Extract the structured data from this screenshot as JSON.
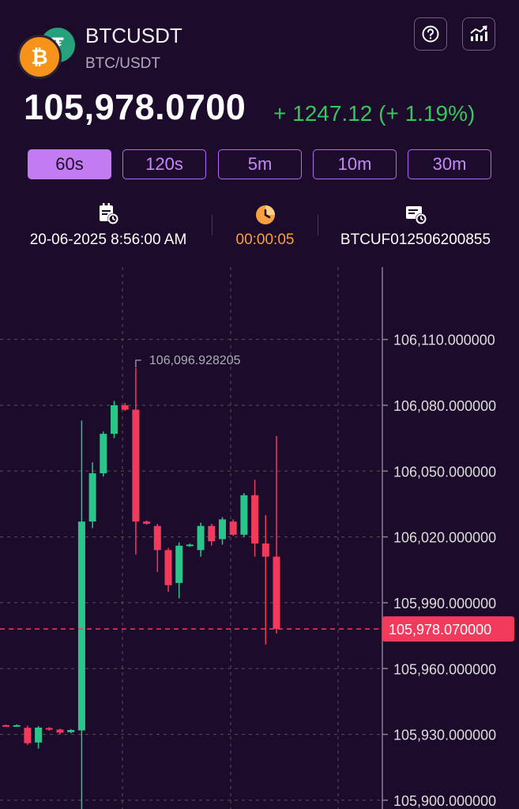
{
  "header": {
    "title": "BTCUSDT",
    "subtitle": "BTC/USDT",
    "coin_back_icon": "tether-logo-icon",
    "coin_front_icon": "bitcoin-logo-icon",
    "help_icon": "help-icon",
    "chart_icon": "trend-chart-icon"
  },
  "price": {
    "current": "105,978.0700",
    "change": "+ 1247.12 (+ 1.19%)",
    "change_color": "#35c759"
  },
  "tabs": [
    {
      "label": "60s",
      "active": true
    },
    {
      "label": "120s",
      "active": false
    },
    {
      "label": "5m",
      "active": false
    },
    {
      "label": "10m",
      "active": false
    },
    {
      "label": "30m",
      "active": false
    }
  ],
  "info": {
    "datetime": "20-06-2025 8:56:00 AM",
    "countdown": "00:00:05",
    "order_id": "BTCUF012506200855"
  },
  "chart_data": {
    "type": "candlestick",
    "y_ticks": [
      "106,110.000000",
      "106,080.000000",
      "106,050.000000",
      "106,020.000000",
      "105,990.000000",
      "105,960.000000",
      "105,930.000000",
      "105,900.000000"
    ],
    "y_values": [
      106110,
      106080,
      106050,
      106020,
      105990,
      105960,
      105930,
      105900
    ],
    "ylim": [
      105896,
      106143
    ],
    "current_price_label": "105,978.070000",
    "current_price": 105978.07,
    "high_label": "106,096.928205",
    "high_value": 106096.93,
    "up_color": "#2bc48a",
    "down_color": "#f23b5c",
    "candles": [
      {
        "o": 105934.2,
        "c": 105934.0,
        "h": 105934.5,
        "l": 105933.7
      },
      {
        "o": 105934.1,
        "c": 105934.2,
        "h": 105934.6,
        "l": 105933.8
      },
      {
        "o": 105933.0,
        "c": 105926.0,
        "h": 105934.0,
        "l": 105925.2
      },
      {
        "o": 105926.3,
        "c": 105933.1,
        "h": 105933.8,
        "l": 105923.5
      },
      {
        "o": 105932.9,
        "c": 105932.4,
        "h": 105933.3,
        "l": 105931.7
      },
      {
        "o": 105932.2,
        "c": 105930.8,
        "h": 105932.6,
        "l": 105930.0
      },
      {
        "o": 105931.0,
        "c": 105932.0,
        "h": 105932.4,
        "l": 105930.5
      },
      {
        "o": 105931.8,
        "c": 106027.0,
        "h": 106073.0,
        "l": 105889.0
      },
      {
        "o": 106027.0,
        "c": 106049.0,
        "h": 106054.0,
        "l": 106024.0
      },
      {
        "o": 106049.0,
        "c": 106067.0,
        "h": 106068.0,
        "l": 106047.5
      },
      {
        "o": 106067.0,
        "c": 106080.0,
        "h": 106082.0,
        "l": 106065.0
      },
      {
        "o": 106080.0,
        "c": 106078.0,
        "h": 106081.0,
        "l": 106077.5
      },
      {
        "o": 106078.0,
        "c": 106027.0,
        "h": 106096.9,
        "l": 106012.0
      },
      {
        "o": 106027.0,
        "c": 106026.0,
        "h": 106027.5,
        "l": 106025.5
      },
      {
        "o": 106025.0,
        "c": 106014.0,
        "h": 106026.0,
        "l": 106004.0
      },
      {
        "o": 106014.0,
        "c": 105998.0,
        "h": 106015.0,
        "l": 105995.0
      },
      {
        "o": 105999.0,
        "c": 106016.0,
        "h": 106017.5,
        "l": 105992.0
      },
      {
        "o": 106016.0,
        "c": 106016.5,
        "h": 106017.0,
        "l": 106015.5
      },
      {
        "o": 106014.0,
        "c": 106025.0,
        "h": 106026.5,
        "l": 106011.0
      },
      {
        "o": 106025.0,
        "c": 106018.0,
        "h": 106026.0,
        "l": 106016.0
      },
      {
        "o": 106019.0,
        "c": 106028.0,
        "h": 106029.0,
        "l": 106016.5
      },
      {
        "o": 106027.0,
        "c": 106021.0,
        "h": 106028.0,
        "l": 106020.5
      },
      {
        "o": 106021.0,
        "c": 106039.0,
        "h": 106040.0,
        "l": 106020.0
      },
      {
        "o": 106039.0,
        "c": 106017.0,
        "h": 106046.0,
        "l": 106011.0
      },
      {
        "o": 106017.0,
        "c": 106011.0,
        "h": 106030.0,
        "l": 105971.0
      },
      {
        "o": 106011.0,
        "c": 105978.07,
        "h": 106066.0,
        "l": 105976.0
      }
    ]
  }
}
